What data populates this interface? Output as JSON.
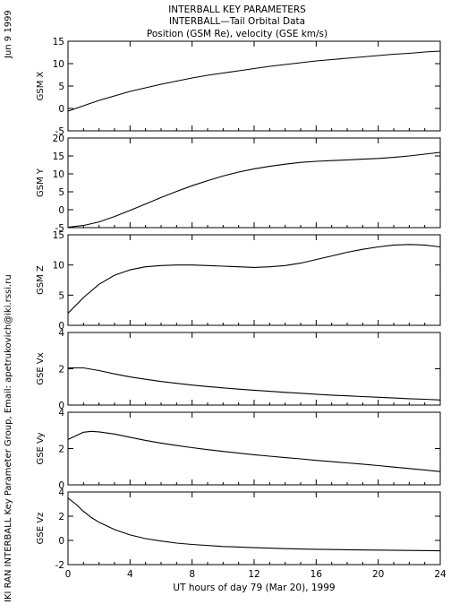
{
  "header": {
    "title_line1": "INTERBALL KEY PARAMETERS",
    "title_line2": "INTERBALL—Tail Orbital Data",
    "title_line3": "Position (GSM Re), velocity (GSE km/s)"
  },
  "side": {
    "date": "Jun  9  1999",
    "credit": "IKI RAN INTERBALL Key Parameter Group, Email: apetrukovich@iki.rssi.ru"
  },
  "chart_data": {
    "type": "line",
    "xlabel": "UT hours of day  79 (Mar 20), 1999",
    "xlim": [
      0,
      24
    ],
    "xticks": [
      0,
      4,
      8,
      12,
      16,
      20,
      24
    ],
    "panels": [
      {
        "ylabel": "GSM X",
        "ylim": [
          -5,
          15
        ],
        "yticks": [
          -5,
          0,
          5,
          10,
          15
        ],
        "x": [
          0,
          1,
          2,
          3,
          4,
          5,
          6,
          7,
          8,
          9,
          10,
          11,
          12,
          13,
          14,
          15,
          16,
          17,
          18,
          19,
          20,
          21,
          22,
          23,
          24
        ],
        "y": [
          -0.6,
          0.6,
          1.8,
          2.8,
          3.8,
          4.6,
          5.4,
          6.1,
          6.8,
          7.4,
          7.9,
          8.4,
          8.9,
          9.4,
          9.8,
          10.2,
          10.6,
          10.9,
          11.2,
          11.5,
          11.8,
          12.1,
          12.3,
          12.6,
          12.8
        ]
      },
      {
        "ylabel": "GSM Y",
        "ylim": [
          -5,
          20
        ],
        "yticks": [
          -5,
          0,
          5,
          10,
          15,
          20
        ],
        "x": [
          0,
          1,
          2,
          3,
          4,
          5,
          6,
          7,
          8,
          9,
          10,
          11,
          12,
          13,
          14,
          15,
          16,
          17,
          18,
          19,
          20,
          21,
          22,
          23,
          24
        ],
        "y": [
          -4.9,
          -4.4,
          -3.4,
          -1.9,
          -0.2,
          1.6,
          3.4,
          5.1,
          6.7,
          8.1,
          9.4,
          10.5,
          11.4,
          12.1,
          12.7,
          13.2,
          13.5,
          13.7,
          13.9,
          14.1,
          14.3,
          14.6,
          15.0,
          15.5,
          16.0
        ]
      },
      {
        "ylabel": "GSM Z",
        "ylim": [
          0,
          15
        ],
        "yticks": [
          0,
          5,
          10,
          15
        ],
        "x": [
          0,
          1,
          2,
          3,
          4,
          5,
          6,
          7,
          8,
          9,
          10,
          11,
          12,
          13,
          14,
          15,
          16,
          17,
          18,
          19,
          20,
          21,
          22,
          23,
          24
        ],
        "y": [
          2.0,
          4.6,
          6.8,
          8.3,
          9.2,
          9.7,
          9.9,
          10.0,
          10.0,
          9.9,
          9.8,
          9.7,
          9.6,
          9.7,
          9.9,
          10.3,
          10.9,
          11.5,
          12.1,
          12.6,
          13.0,
          13.3,
          13.4,
          13.3,
          13.0
        ]
      },
      {
        "ylabel": "GSE Vx",
        "ylim": [
          0,
          4
        ],
        "yticks": [
          0,
          2,
          4
        ],
        "x": [
          0,
          1,
          2,
          3,
          4,
          5,
          6,
          7,
          8,
          9,
          10,
          11,
          12,
          13,
          14,
          15,
          16,
          17,
          18,
          19,
          20,
          21,
          22,
          23,
          24
        ],
        "y": [
          2.05,
          2.05,
          1.9,
          1.72,
          1.55,
          1.42,
          1.3,
          1.2,
          1.1,
          1.02,
          0.95,
          0.88,
          0.82,
          0.76,
          0.7,
          0.65,
          0.6,
          0.55,
          0.51,
          0.47,
          0.43,
          0.39,
          0.35,
          0.32,
          0.28
        ]
      },
      {
        "ylabel": "GSE Vy",
        "ylim": [
          0,
          4
        ],
        "yticks": [
          0,
          2,
          4
        ],
        "x": [
          0,
          1,
          1.5,
          2,
          3,
          4,
          5,
          6,
          7,
          8,
          9,
          10,
          11,
          12,
          13,
          14,
          15,
          16,
          17,
          18,
          19,
          20,
          21,
          22,
          23,
          24
        ],
        "y": [
          2.5,
          2.9,
          2.95,
          2.92,
          2.8,
          2.62,
          2.45,
          2.3,
          2.17,
          2.05,
          1.94,
          1.84,
          1.75,
          1.66,
          1.58,
          1.5,
          1.43,
          1.35,
          1.28,
          1.21,
          1.14,
          1.06,
          0.98,
          0.9,
          0.82,
          0.73
        ]
      },
      {
        "ylabel": "GSE Vz",
        "ylim": [
          -2,
          4
        ],
        "yticks": [
          -2,
          0,
          2,
          4
        ],
        "x": [
          0,
          0.5,
          1,
          1.5,
          2,
          3,
          4,
          5,
          6,
          7,
          8,
          10,
          12,
          14,
          16,
          18,
          20,
          22,
          24
        ],
        "y": [
          3.5,
          3.0,
          2.4,
          1.9,
          1.5,
          0.9,
          0.45,
          0.15,
          -0.05,
          -0.22,
          -0.33,
          -0.5,
          -0.6,
          -0.68,
          -0.73,
          -0.77,
          -0.8,
          -0.83,
          -0.86
        ]
      }
    ]
  }
}
